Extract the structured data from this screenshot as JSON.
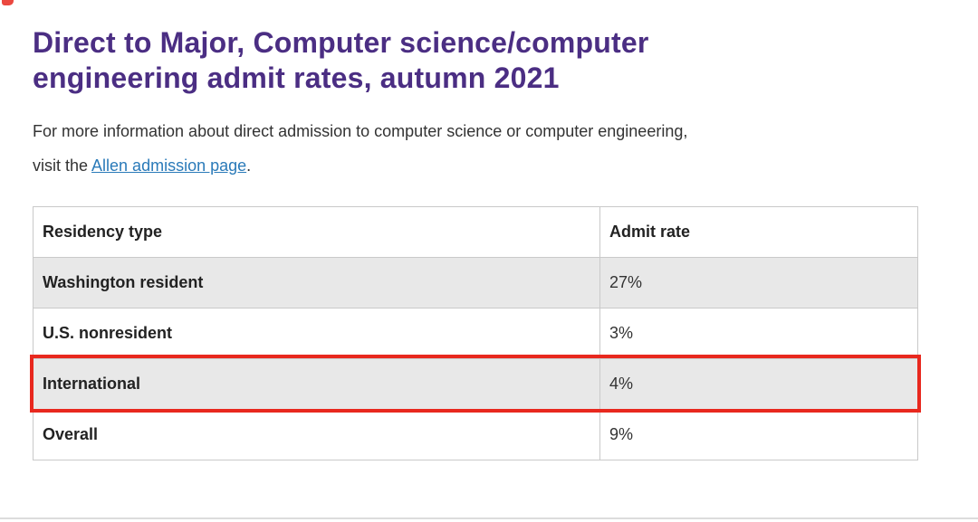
{
  "header": {
    "title_line1": "Direct to Major, Computer science/computer",
    "title_line2": "engineering admit rates, autumn 2021"
  },
  "intro": {
    "line1": "For more information about direct admission to computer science or computer engineering,",
    "line2_prefix": "visit the ",
    "link_text": "Allen admission page",
    "suffix": "."
  },
  "table": {
    "headers": [
      "Residency type",
      "Admit rate"
    ],
    "rows": [
      {
        "residency": "Washington resident",
        "rate": "27%"
      },
      {
        "residency": "U.S. nonresident",
        "rate": "3%"
      },
      {
        "residency": "International",
        "rate": "4%"
      },
      {
        "residency": "Overall",
        "rate": "9%"
      }
    ],
    "highlighted_row": "International"
  },
  "colors": {
    "heading_color": "#4b2e83",
    "link_color": "#2a7ab9",
    "body_text": "#333333",
    "table_border": "#c9c9c9",
    "row_shade": "#e8e8e8",
    "highlight_color": "#e8281e"
  }
}
